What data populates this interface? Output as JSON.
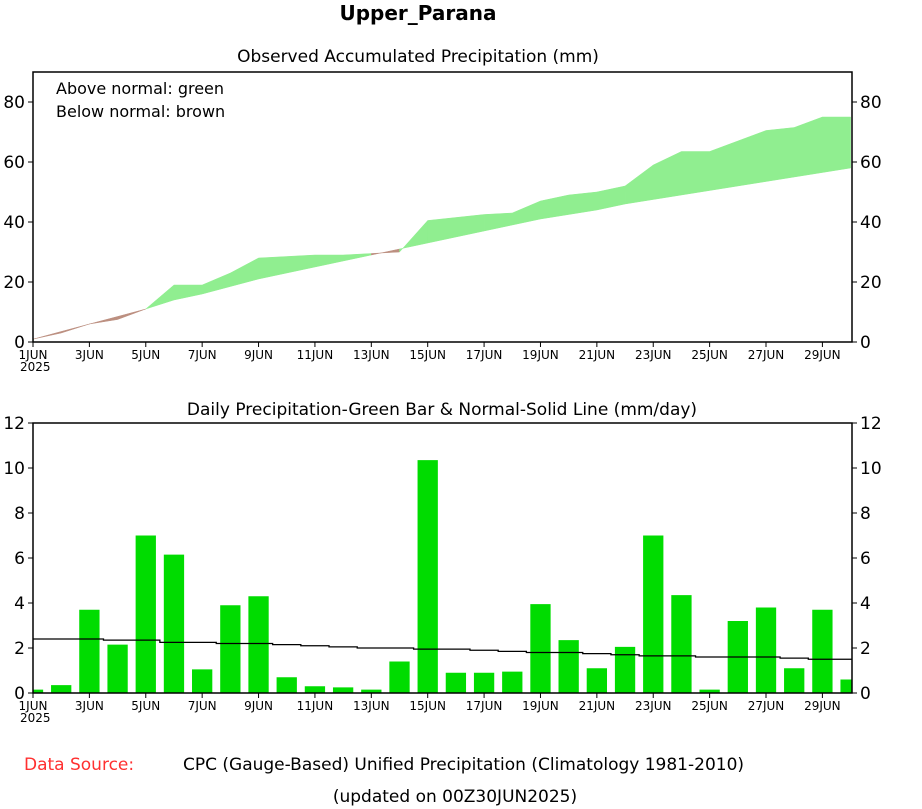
{
  "title": "Upper_Parana",
  "footer": {
    "source_label": "Data Source:",
    "source_text": "CPC (Gauge-Based) Unified Precipitation (Climatology 1981-2010)",
    "updated": "(updated on 00Z30JUN2025)"
  },
  "colors": {
    "above": "#90ee90",
    "below": "#bc8f80",
    "bar": "#00dc00",
    "source_label": "#ff3030"
  },
  "chart_data": [
    {
      "type": "area",
      "title": "Observed Accumulated Precipitation (mm)",
      "legend": [
        "Above normal: green",
        "Below normal: brown"
      ],
      "legend_placement": "top-left",
      "ylim": [
        0,
        90
      ],
      "yticks": [
        0,
        20,
        40,
        60,
        80
      ],
      "xlim": [
        1,
        30
      ],
      "xtick_days": [
        1,
        3,
        5,
        7,
        9,
        11,
        13,
        15,
        17,
        19,
        21,
        23,
        25,
        27,
        29
      ],
      "xtick_labels": [
        "1JUN",
        "3JUN",
        "5JUN",
        "7JUN",
        "9JUN",
        "11JUN",
        "13JUN",
        "15JUN",
        "17JUN",
        "19JUN",
        "21JUN",
        "23JUN",
        "25JUN",
        "27JUN",
        "29JUN"
      ],
      "year_label": "2025",
      "days": [
        1,
        2,
        3,
        4,
        5,
        6,
        7,
        8,
        9,
        10,
        11,
        12,
        13,
        14,
        15,
        16,
        17,
        18,
        19,
        20,
        21,
        22,
        23,
        24,
        25,
        26,
        27,
        28,
        29,
        30
      ],
      "series": [
        {
          "name": "Observed accumulated",
          "values": [
            1,
            3,
            6,
            7.5,
            11,
            19,
            19,
            23,
            28,
            28.5,
            29,
            29,
            29.5,
            30,
            40.5,
            41.5,
            42.5,
            43,
            47,
            49,
            50,
            52,
            59,
            63.5,
            63.5,
            67,
            70.5,
            71.5,
            75,
            75
          ]
        },
        {
          "name": "Normal accumulated",
          "values": [
            1,
            3.5,
            6,
            8.5,
            11,
            14,
            16,
            18.5,
            21,
            23,
            25,
            27,
            29,
            31,
            33,
            35,
            37,
            39,
            41,
            42.5,
            44,
            46,
            47.5,
            49,
            50.5,
            52,
            53.5,
            55,
            56.5,
            58
          ]
        }
      ]
    },
    {
      "type": "bar",
      "title": "Daily Precipitation-Green Bar & Normal-Solid Line (mm/day)",
      "ylim": [
        0,
        12
      ],
      "yticks": [
        0,
        2,
        4,
        6,
        8,
        10,
        12
      ],
      "xlim": [
        1,
        30
      ],
      "days": [
        1,
        2,
        3,
        4,
        5,
        6,
        7,
        8,
        9,
        10,
        11,
        12,
        13,
        14,
        15,
        16,
        17,
        18,
        19,
        20,
        21,
        22,
        23,
        24,
        25,
        26,
        27,
        28,
        29,
        30
      ],
      "series": [
        {
          "name": "Daily precipitation",
          "values": [
            0.15,
            0.35,
            3.7,
            2.15,
            7.0,
            6.15,
            1.05,
            3.9,
            4.3,
            0.7,
            0.3,
            0.25,
            0.15,
            1.4,
            10.35,
            0.9,
            0.9,
            0.95,
            3.95,
            2.35,
            1.1,
            2.05,
            7.0,
            4.35,
            0.15,
            3.2,
            3.8,
            1.1,
            3.7,
            0.6
          ]
        },
        {
          "name": "Normal",
          "values": [
            2.4,
            2.4,
            2.4,
            2.35,
            2.35,
            2.25,
            2.25,
            2.2,
            2.2,
            2.15,
            2.1,
            2.05,
            2.0,
            2.0,
            1.95,
            1.95,
            1.9,
            1.85,
            1.8,
            1.8,
            1.75,
            1.7,
            1.65,
            1.65,
            1.6,
            1.6,
            1.6,
            1.55,
            1.5,
            1.5
          ]
        }
      ]
    }
  ]
}
